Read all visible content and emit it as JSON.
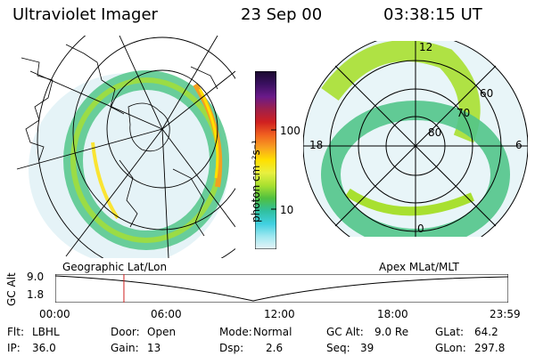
{
  "header": {
    "title": "Ultraviolet Imager",
    "date": "23 Sep 00",
    "time": "03:38:15 UT"
  },
  "colorbar": {
    "label": "photon cm⁻²s⁻¹",
    "ticks": [
      "100",
      "10"
    ],
    "colors": [
      "#1a0a2e",
      "#3a1060",
      "#6a1a8a",
      "#a0204a",
      "#d02020",
      "#f06020",
      "#f8a020",
      "#ffe000",
      "#e8f040",
      "#a8e030",
      "#50c040",
      "#30c0a0",
      "#40d0e0",
      "#a0e8f0",
      "#e8f4f8"
    ]
  },
  "left_map": {
    "label": "Geographic Lat/Lon"
  },
  "right_map": {
    "label": "Apex MLat/MLT",
    "mlt_labels": {
      "top": "12",
      "left": "18",
      "right": "6",
      "bottom": "0"
    },
    "lat_labels": [
      "60",
      "70",
      "80"
    ]
  },
  "timeline": {
    "ylabel": "GC Alt",
    "yticks": [
      "9.0",
      "1.8"
    ],
    "xticks": [
      "00:00",
      "06:00",
      "12:00",
      "18:00",
      "23:59"
    ],
    "marker_time": "03:38",
    "marker_color": "#d02020"
  },
  "footer": {
    "row1": [
      {
        "key": "Flt:",
        "value": "LBHL"
      },
      {
        "key": "Door:",
        "value": "Open"
      },
      {
        "key": "Mode:",
        "value": "Normal"
      },
      {
        "key": "GC Alt:",
        "value": "9.0 Re"
      },
      {
        "key": "GLat:",
        "value": "64.2"
      }
    ],
    "row2": [
      {
        "key": "IP:",
        "value": "36.0"
      },
      {
        "key": "Gain:",
        "value": "13"
      },
      {
        "key": "Dsp:",
        "value": "2.6"
      },
      {
        "key": "Seq:",
        "value": "39"
      },
      {
        "key": "GLon:",
        "value": "297.8"
      }
    ]
  }
}
